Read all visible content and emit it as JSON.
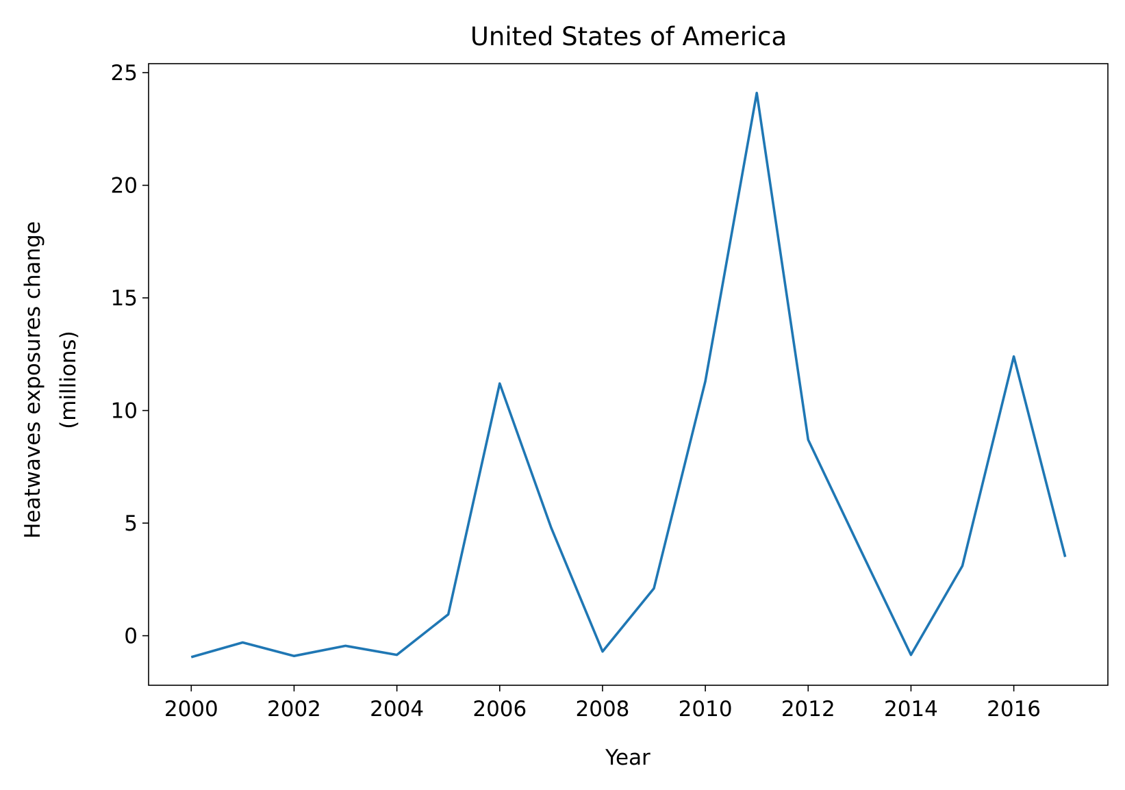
{
  "chart_data": {
    "type": "line",
    "title": "United States of America",
    "xlabel": "Year",
    "ylabel_line1": "Heatwaves exposures change",
    "ylabel_line2": "(millions)",
    "x": [
      2000,
      2001,
      2002,
      2003,
      2004,
      2005,
      2006,
      2007,
      2008,
      2009,
      2010,
      2011,
      2012,
      2013,
      2014,
      2015,
      2016,
      2017
    ],
    "series": [
      {
        "color": "#1f77b4",
        "values": [
          -0.95,
          -0.3,
          -0.9,
          -0.45,
          -0.85,
          0.95,
          11.2,
          4.8,
          -0.7,
          2.1,
          11.3,
          24.1,
          8.7,
          3.9,
          -0.85,
          3.1,
          12.4,
          3.5
        ]
      }
    ],
    "xlim": [
      1999.17,
      2017.83
    ],
    "ylim": [
      -2.2,
      25.4
    ],
    "xticks": [
      2000,
      2002,
      2004,
      2006,
      2008,
      2010,
      2012,
      2014,
      2016
    ],
    "yticks": [
      0,
      5,
      10,
      15,
      20,
      25
    ],
    "grid": false,
    "legend": "none"
  }
}
